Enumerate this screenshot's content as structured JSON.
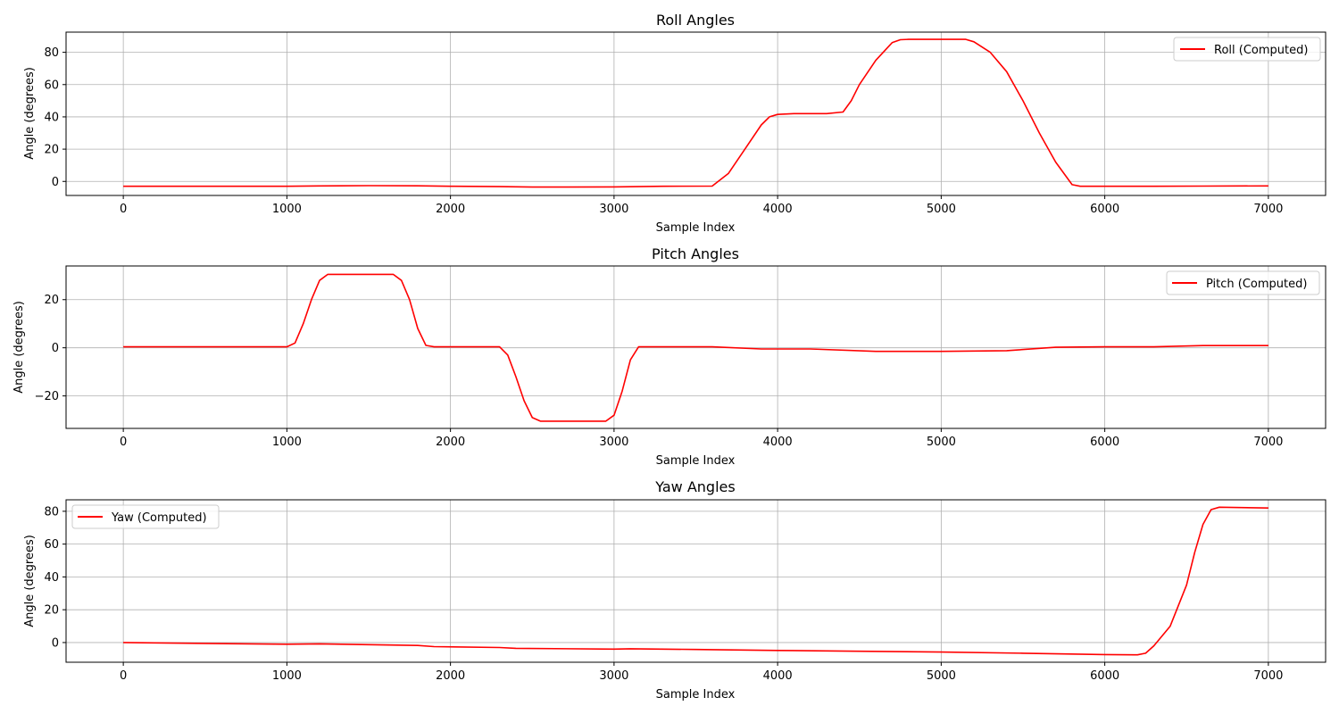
{
  "figure": {
    "background": "#ffffff",
    "line_color": "#ff0000",
    "grid_color": "#b0b0b0"
  },
  "chart_data": [
    {
      "type": "line",
      "title": "Roll Angles",
      "xlabel": "Sample Index",
      "ylabel": "Angle (degrees)",
      "xlim": [
        -350,
        7350
      ],
      "ylim": [
        -8.7,
        92.5
      ],
      "xticks": [
        0,
        1000,
        2000,
        3000,
        4000,
        5000,
        6000,
        7000
      ],
      "yticks": [
        0,
        20,
        40,
        60,
        80
      ],
      "grid": true,
      "legend_position": "upper right",
      "series": [
        {
          "name": "Roll (Computed)",
          "color": "#ff0000",
          "x": [
            0,
            1000,
            1200,
            1500,
            1800,
            2000,
            2300,
            2500,
            3000,
            3300,
            3600,
            3700,
            3800,
            3900,
            3950,
            4000,
            4100,
            4300,
            4400,
            4450,
            4500,
            4600,
            4700,
            4750,
            4800,
            5000,
            5150,
            5200,
            5300,
            5400,
            5500,
            5600,
            5700,
            5800,
            5850,
            6000,
            6300,
            6600,
            7000
          ],
          "y": [
            -3,
            -3,
            -2.8,
            -2.6,
            -2.7,
            -3,
            -3.2,
            -3.5,
            -3.4,
            -3,
            -2.9,
            5,
            20,
            35,
            40,
            41.5,
            42,
            42,
            43,
            50,
            60,
            75,
            86,
            87.8,
            88,
            88,
            88,
            86.5,
            80,
            68,
            50,
            30,
            12,
            -2,
            -3,
            -3,
            -3,
            -2.9,
            -2.8
          ]
        }
      ]
    },
    {
      "type": "line",
      "title": "Pitch Angles",
      "xlabel": "Sample Index",
      "ylabel": "Angle (degrees)",
      "xlim": [
        -350,
        7350
      ],
      "ylim": [
        -33.5,
        34.0
      ],
      "xticks": [
        0,
        1000,
        2000,
        3000,
        4000,
        5000,
        6000,
        7000
      ],
      "yticks": [
        -20,
        0,
        20
      ],
      "grid": true,
      "legend_position": "upper right",
      "series": [
        {
          "name": "Pitch (Computed)",
          "color": "#ff0000",
          "x": [
            0,
            1000,
            1050,
            1100,
            1150,
            1200,
            1250,
            1650,
            1700,
            1750,
            1800,
            1850,
            1900,
            2300,
            2350,
            2400,
            2450,
            2500,
            2550,
            2950,
            3000,
            3050,
            3100,
            3150,
            3600,
            3900,
            4200,
            4600,
            5000,
            5400,
            5700,
            6000,
            6300,
            6600,
            7000
          ],
          "y": [
            0.4,
            0.4,
            2,
            10,
            20,
            28,
            30.5,
            30.5,
            28,
            20,
            8,
            1,
            0.4,
            0.4,
            -3,
            -12,
            -22,
            -29,
            -30.5,
            -30.5,
            -28,
            -18,
            -5,
            0.4,
            0.4,
            -0.5,
            -0.5,
            -1.5,
            -1.5,
            -1.2,
            0.2,
            0.4,
            0.4,
            0.9,
            0.9
          ]
        }
      ]
    },
    {
      "type": "line",
      "title": "Yaw Angles",
      "xlabel": "Sample Index",
      "ylabel": "Angle (degrees)",
      "xlim": [
        -350,
        7350
      ],
      "ylim": [
        -12,
        87
      ],
      "xticks": [
        0,
        1000,
        2000,
        3000,
        4000,
        5000,
        6000,
        7000
      ],
      "yticks": [
        0,
        20,
        40,
        60,
        80
      ],
      "grid": true,
      "legend_position": "upper left",
      "series": [
        {
          "name": "Yaw (Computed)",
          "color": "#ff0000",
          "x": [
            0,
            500,
            1000,
            1200,
            1800,
            1900,
            2300,
            2400,
            3000,
            3100,
            3500,
            4000,
            4500,
            5000,
            5500,
            6000,
            6200,
            6250,
            6300,
            6400,
            6500,
            6550,
            6600,
            6650,
            6700,
            7000
          ],
          "y": [
            0,
            -0.5,
            -1,
            -0.8,
            -1.8,
            -2.5,
            -3,
            -3.5,
            -4,
            -3.8,
            -4.2,
            -4.8,
            -5.3,
            -5.8,
            -6.5,
            -7.3,
            -7.5,
            -6.5,
            -2,
            10,
            35,
            55,
            72,
            81,
            82.5,
            82
          ]
        }
      ]
    }
  ]
}
